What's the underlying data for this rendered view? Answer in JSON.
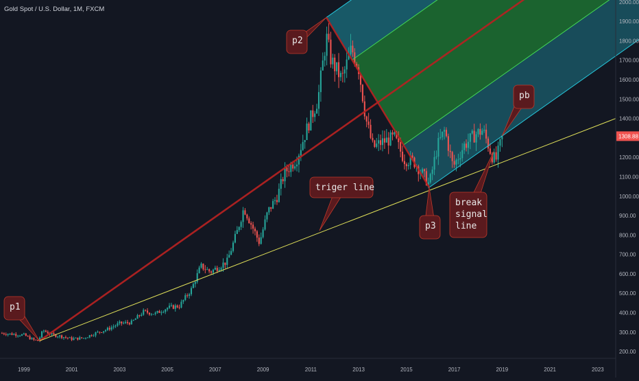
{
  "title": "Gold Spot / U.S. Dollar, 1M, FXCM",
  "price_badge": "1308.88",
  "colors": {
    "background": "#131722",
    "up": "#26a69a",
    "down": "#ef5350",
    "pitchfork_outer": "#1e8fa0",
    "pitchfork_inner": "#22a33b",
    "median": "#b22222",
    "trigger": "#e3e35a",
    "callout": "#5a1a1e",
    "badge": "#ef5350"
  },
  "callouts": {
    "p1": "p1",
    "p2": "p2",
    "p3": "p3",
    "pb": "pb",
    "trigger": "triger line",
    "break1": "break",
    "break2": "signal",
    "break3": "line"
  },
  "chart_data": {
    "type": "candlestick",
    "title": "Gold Spot / U.S. Dollar, 1M, FXCM",
    "x_ticks": [
      "1999",
      "2001",
      "2003",
      "2005",
      "2007",
      "2009",
      "2011",
      "2013",
      "2015",
      "2017",
      "2019",
      "2021",
      "2023"
    ],
    "x_tick_years": [
      1999,
      2001,
      2003,
      2005,
      2007,
      2009,
      2011,
      2013,
      2015,
      2017,
      2019,
      2021,
      2023
    ],
    "y_ticks": [
      200,
      300,
      400,
      500,
      600,
      700,
      800,
      900,
      1000,
      1100,
      1200,
      1300,
      1400,
      1500,
      1600,
      1700,
      1800,
      1900,
      2000
    ],
    "y_tick_labels": [
      "200.00",
      "300.00",
      "400.00",
      "500.00",
      "600.00",
      "700.00",
      "800.00",
      "900.00",
      "1000.00",
      "1100.00",
      "1200.00",
      "1300.00",
      "1400.00",
      "1500.00",
      "1600.00",
      "1700.00",
      "1800.00",
      "1900.00",
      "2000.00"
    ],
    "x_range": [
      1998.0,
      2023.75
    ],
    "y_range": [
      165,
      2010
    ],
    "last_price": 1308.88,
    "price_path": [
      [
        1998.0,
        295
      ],
      [
        1999.0,
        285
      ],
      [
        1999.4,
        260
      ],
      [
        1999.6,
        255
      ],
      [
        1999.8,
        310
      ],
      [
        2000.2,
        285
      ],
      [
        2000.5,
        280
      ],
      [
        2001.0,
        265
      ],
      [
        2001.5,
        270
      ],
      [
        2002.0,
        295
      ],
      [
        2002.5,
        315
      ],
      [
        2003.0,
        345
      ],
      [
        2003.5,
        350
      ],
      [
        2004.0,
        405
      ],
      [
        2004.5,
        395
      ],
      [
        2005.0,
        425
      ],
      [
        2005.5,
        435
      ],
      [
        2006.0,
        520
      ],
      [
        2006.4,
        640
      ],
      [
        2006.8,
        610
      ],
      [
        2007.5,
        665
      ],
      [
        2007.9,
        810
      ],
      [
        2008.2,
        940
      ],
      [
        2008.6,
        830
      ],
      [
        2008.85,
        760
      ],
      [
        2009.2,
        920
      ],
      [
        2009.6,
        1000
      ],
      [
        2009.9,
        1120
      ],
      [
        2010.4,
        1190
      ],
      [
        2010.9,
        1370
      ],
      [
        2011.3,
        1500
      ],
      [
        2011.65,
        1820
      ],
      [
        2011.85,
        1700
      ],
      [
        2012.3,
        1600
      ],
      [
        2012.7,
        1760
      ],
      [
        2013.0,
        1660
      ],
      [
        2013.3,
        1400
      ],
      [
        2013.6,
        1250
      ],
      [
        2014.0,
        1280
      ],
      [
        2014.5,
        1300
      ],
      [
        2014.9,
        1190
      ],
      [
        2015.3,
        1180
      ],
      [
        2015.7,
        1110
      ],
      [
        2015.95,
        1060
      ],
      [
        2016.3,
        1260
      ],
      [
        2016.6,
        1340
      ],
      [
        2016.95,
        1150
      ],
      [
        2017.4,
        1260
      ],
      [
        2017.9,
        1320
      ],
      [
        2018.2,
        1340
      ],
      [
        2018.6,
        1200
      ],
      [
        2018.75,
        1190
      ],
      [
        2019.0,
        1300
      ]
    ],
    "annotations": {
      "p1": [
        1999.65,
        255
      ],
      "p2": [
        2011.65,
        1920
      ],
      "p3": [
        2015.95,
        1045
      ],
      "pb": [
        2019.0,
        1320
      ],
      "pitchfork_p3_start": [
        2015.0,
        1280
      ],
      "trigger_line": [
        [
          1999.65,
          255
        ],
        [
          2023.75,
          1400
        ]
      ]
    }
  }
}
